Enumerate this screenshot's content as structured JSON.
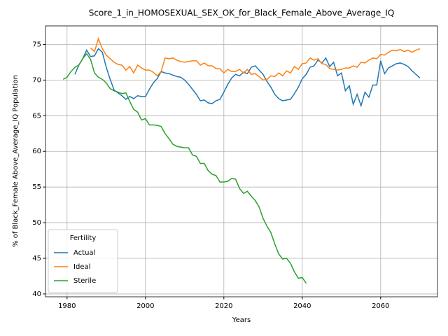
{
  "chart_data": {
    "type": "line",
    "title": "Score_1_in_HOMOSEXUAL_SEX_OK_for_Black_Female_Above_Average_IQ",
    "xlabel": "Years",
    "ylabel": "% of Black_Female Above_Average_IQ Population",
    "legend_title": "Fertility",
    "legend": "lower left",
    "grid": true,
    "x": [
      1979,
      1980,
      1981,
      1982,
      1983,
      1984,
      1985,
      1986,
      1987,
      1988,
      1989,
      1990,
      1991,
      1992,
      1993,
      1994,
      1995,
      1996,
      1997,
      1998,
      1999,
      2000,
      2001,
      2002,
      2003,
      2004,
      2005,
      2006,
      2007,
      2008,
      2009,
      2010,
      2011,
      2012,
      2013,
      2014,
      2015,
      2016,
      2017,
      2018,
      2019,
      2020,
      2021,
      2022,
      2023,
      2024,
      2025,
      2026,
      2027,
      2028,
      2029,
      2030,
      2031,
      2032,
      2033,
      2034,
      2035,
      2036,
      2037,
      2038,
      2039,
      2040,
      2041,
      2042,
      2043,
      2044,
      2045,
      2046,
      2047,
      2048,
      2049,
      2050,
      2051,
      2052,
      2053,
      2054,
      2055,
      2056,
      2057,
      2058,
      2059,
      2060,
      2061,
      2062,
      2063,
      2064,
      2065,
      2066,
      2067,
      2068,
      2069,
      2070
    ],
    "series": [
      {
        "name": "Actual",
        "color": "#1f77b4",
        "values": [
          null,
          null,
          null,
          70.8,
          72.1,
          73.0,
          74.2,
          73.3,
          73.4,
          74.4,
          73.9,
          71.8,
          70.1,
          68.6,
          68.2,
          67.8,
          67.3,
          67.7,
          67.4,
          67.8,
          67.7,
          67.7,
          68.7,
          69.6,
          70.2,
          71.2,
          71.0,
          70.9,
          70.7,
          70.5,
          70.4,
          70.0,
          69.4,
          68.7,
          68.0,
          67.1,
          67.2,
          66.8,
          66.7,
          67.1,
          67.3,
          68.3,
          69.4,
          70.3,
          70.8,
          70.6,
          71.1,
          70.9,
          71.8,
          72.0,
          71.4,
          70.8,
          69.8,
          69.0,
          68.0,
          67.4,
          67.1,
          67.2,
          67.3,
          68.1,
          69.0,
          70.2,
          70.8,
          71.8,
          72.0,
          72.8,
          72.4,
          73.1,
          71.9,
          72.5,
          70.6,
          71.0,
          68.5,
          69.2,
          66.6,
          68.0,
          66.4,
          68.3,
          67.6,
          69.3,
          69.3,
          72.7,
          70.9,
          71.7,
          72.0,
          72.3,
          72.4,
          72.2,
          71.9,
          71.3,
          70.8,
          70.3
        ]
      },
      {
        "name": "Ideal",
        "color": "#ff7f0e",
        "values": [
          null,
          null,
          null,
          null,
          null,
          null,
          null,
          74.5,
          74.0,
          75.8,
          74.4,
          73.5,
          73.0,
          72.5,
          72.2,
          72.1,
          71.4,
          71.9,
          71.0,
          72.1,
          71.7,
          71.4,
          71.4,
          71.1,
          70.6,
          71.2,
          73.1,
          73.0,
          73.1,
          72.8,
          72.6,
          72.5,
          72.6,
          72.7,
          72.7,
          72.1,
          72.4,
          72.0,
          72.0,
          71.6,
          71.6,
          71.0,
          71.5,
          71.2,
          71.2,
          71.5,
          71.0,
          71.5,
          70.8,
          70.9,
          70.5,
          70.0,
          70.1,
          70.6,
          70.5,
          71.0,
          70.6,
          71.3,
          71.0,
          71.9,
          71.5,
          72.3,
          72.4,
          73.1,
          72.8,
          73.0,
          72.3,
          72.2,
          71.6,
          71.5,
          71.4,
          71.5,
          71.7,
          71.7,
          72.0,
          71.8,
          72.5,
          72.4,
          72.8,
          73.1,
          73.0,
          73.6,
          73.5,
          73.9,
          74.2,
          74.1,
          74.3,
          74.0,
          74.2,
          73.9,
          74.2,
          74.4
        ]
      },
      {
        "name": "Sterile",
        "color": "#2ca02c",
        "values": [
          70.1,
          70.4,
          71.2,
          71.8,
          72.1,
          73.0,
          73.7,
          72.9,
          71.0,
          70.4,
          70.1,
          69.6,
          68.8,
          68.5,
          68.3,
          68.1,
          68.2,
          67.0,
          65.9,
          65.5,
          64.4,
          64.6,
          63.7,
          63.7,
          63.65,
          63.5,
          62.5,
          61.8,
          61.0,
          60.7,
          60.6,
          60.5,
          60.5,
          59.5,
          59.3,
          58.3,
          58.3,
          57.3,
          56.8,
          56.6,
          55.7,
          55.7,
          55.8,
          56.2,
          56.1,
          54.8,
          54.1,
          54.4,
          53.7,
          53.1,
          52.2,
          50.6,
          49.5,
          48.6,
          47.0,
          45.6,
          44.9,
          45.0,
          44.3,
          43.1,
          42.2,
          42.3,
          41.5,
          null,
          null,
          null,
          null,
          null,
          null,
          null,
          null,
          null,
          null,
          null,
          null,
          null,
          null,
          null,
          null,
          null,
          null,
          null,
          null,
          null,
          null,
          null,
          null,
          null,
          null,
          null,
          null,
          null
        ]
      }
    ],
    "xlim": [
      1974.5,
      2074.5
    ],
    "ylim": [
      39.6,
      77.6
    ],
    "xticks": [
      1980,
      2000,
      2020,
      2040,
      2060
    ],
    "yticks": [
      40,
      45,
      50,
      55,
      60,
      65,
      70,
      75
    ]
  }
}
